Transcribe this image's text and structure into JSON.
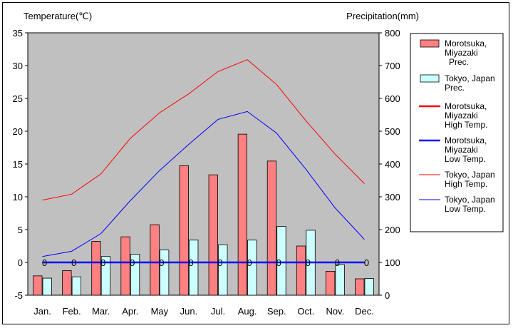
{
  "chart_data": {
    "type": "bar",
    "left_axis_title": "Temperature(℃)",
    "right_axis_title": "Precipitation(mm)",
    "categories": [
      "Jan.",
      "Feb.",
      "Mar.",
      "Apr.",
      "May",
      "Jun.",
      "Jul.",
      "Aug.",
      "Sep.",
      "Oct.",
      "Nov.",
      "Dec."
    ],
    "left_axis": {
      "unit": "℃",
      "min": -5,
      "max": 35,
      "step": 5
    },
    "right_axis": {
      "unit": "mm",
      "min": 0,
      "max": 800,
      "step": 100
    },
    "grid": false,
    "legend_position": "right",
    "bar_series": [
      {
        "name": "Morotsuka, Miyazaki Prec.",
        "legend_lines": [
          "Morotsuka,",
          "Miyazaki",
          "Prec."
        ],
        "color": "#ff8080",
        "axis": "right",
        "values": [
          59,
          75,
          164,
          178,
          215,
          395,
          367,
          491,
          409,
          150,
          73,
          50
        ]
      },
      {
        "name": "Tokyo, Japan Prec.",
        "legend_lines": [
          "Tokyo, Japan",
          "Prec."
        ],
        "color": "#ccffff",
        "axis": "right",
        "values": [
          52,
          56,
          118,
          125,
          138,
          168,
          154,
          168,
          210,
          198,
          93,
          51
        ]
      }
    ],
    "line_series": [
      {
        "name": "Morotsuka, Miyazaki High Temp.",
        "legend_lines": [
          "Morotsuka,",
          "Miyazaki",
          "High Temp."
        ],
        "color": "#ff0000",
        "width": 2.5,
        "axis": "left",
        "values": [
          null,
          null,
          null,
          null,
          null,
          null,
          null,
          null,
          null,
          null,
          null,
          null
        ]
      },
      {
        "name": "Morotsuka, Miyazaki Low Temp.",
        "legend_lines": [
          "Morotsuka,",
          "Miyazaki",
          "Low Temp."
        ],
        "color": "#0000ff",
        "width": 2.5,
        "axis": "left",
        "values": [
          0,
          0,
          0,
          0,
          0,
          0,
          0,
          0,
          0,
          0,
          0,
          0
        ],
        "point_labels": [
          "0",
          "0",
          "0",
          "0",
          "0",
          "0",
          "0",
          "0",
          "0",
          "0",
          "0",
          "0"
        ]
      },
      {
        "name": "Tokyo, Japan High Temp.",
        "legend_lines": [
          "Tokyo, Japan",
          "High Temp."
        ],
        "color": "#ff0000",
        "width": 1,
        "axis": "left",
        "values": [
          9.5,
          10.4,
          13.5,
          18.9,
          22.8,
          25.7,
          29.1,
          30.9,
          27.1,
          21.6,
          16.5,
          12.0
        ]
      },
      {
        "name": "Tokyo, Japan Low Temp.",
        "legend_lines": [
          "Tokyo, Japan",
          "Low Temp."
        ],
        "color": "#0000ff",
        "width": 1,
        "axis": "left",
        "values": [
          0.9,
          1.7,
          4.4,
          9.4,
          14.0,
          18.0,
          21.8,
          23.0,
          19.7,
          14.2,
          8.3,
          3.5
        ]
      }
    ]
  }
}
